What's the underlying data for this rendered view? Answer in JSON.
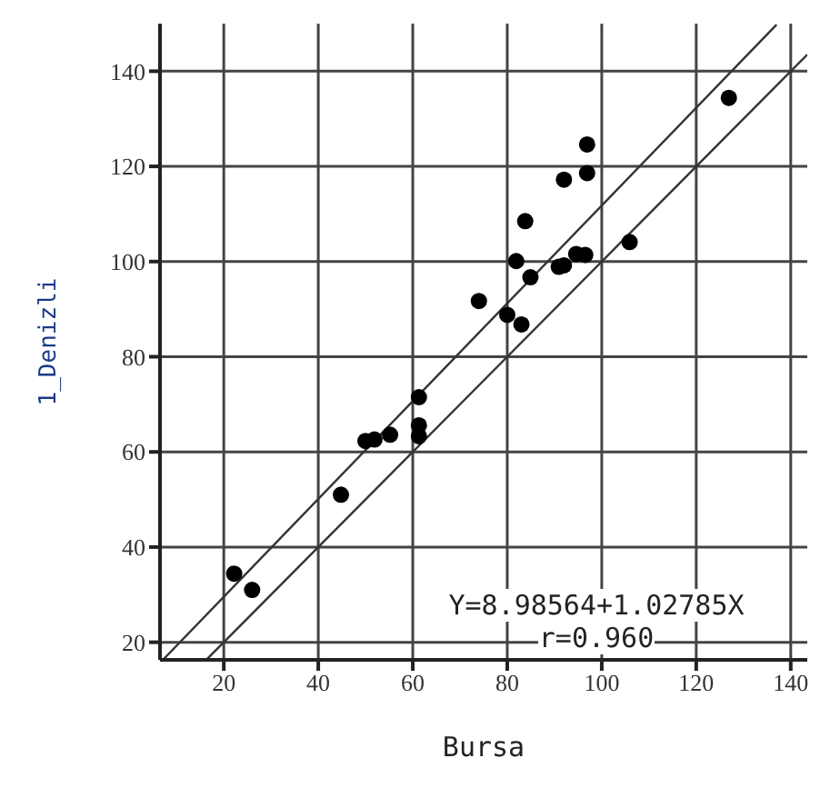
{
  "chart_data": {
    "type": "scatter",
    "xlabel": "Bursa",
    "ylabel": "1_Denizli",
    "xlim": [
      6.5,
      143.5
    ],
    "ylim": [
      16.3,
      150
    ],
    "xticks": [
      20,
      40,
      60,
      80,
      100,
      120,
      140
    ],
    "yticks": [
      20,
      40,
      60,
      80,
      100,
      120,
      140
    ],
    "grid": true,
    "marker": "circle",
    "annotations": [
      "Y=8.98564+1.02785X",
      "r=0.960"
    ],
    "series": [
      {
        "color": "#000000",
        "x": [
          126.9,
          96.9,
          96.9,
          92,
          83.8,
          81.9,
          84.9,
          90.9,
          92,
          94.6,
          96.5,
          105.9,
          74,
          80,
          83,
          61.3,
          61.3,
          61.3,
          50,
          51.9,
          55.2,
          44.8,
          22.2,
          26
        ],
        "values": [
          134.4,
          124.6,
          118.6,
          117.2,
          108.5,
          100.1,
          96.7,
          98.9,
          99.2,
          101.6,
          101.4,
          104.1,
          91.7,
          88.8,
          86.8,
          71.5,
          65.6,
          63.3,
          62.3,
          62.6,
          63.6,
          51,
          34.4,
          31
        ]
      },
      {
        "type": "line",
        "color": "#333333",
        "marker": "none",
        "x": [
          7.2,
          137
        ],
        "values": [
          16.4,
          149.8
        ]
      },
      {
        "type": "line",
        "color": "#333333",
        "marker": "none",
        "x": [
          16.5,
          143.5
        ],
        "values": [
          16.5,
          143.5
        ]
      }
    ]
  }
}
